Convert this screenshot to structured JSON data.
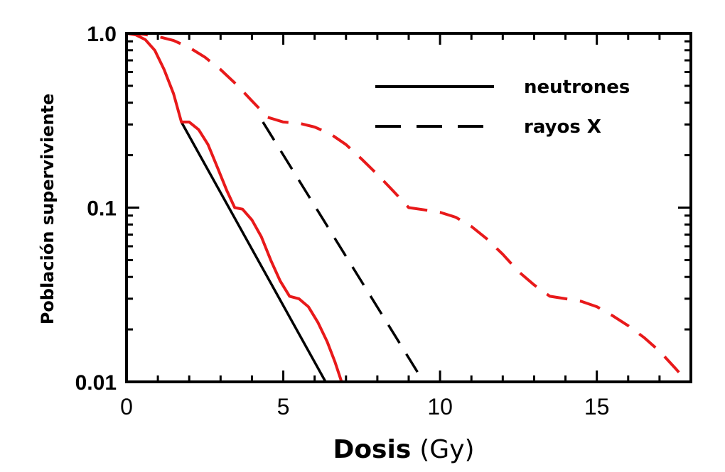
{
  "chart_data": {
    "type": "line",
    "xlabel_bold": "Dosis",
    "xlabel_unit": "(Gy)",
    "ylabel": "Población superviviente",
    "xlim": [
      0,
      18
    ],
    "ylim": [
      0.01,
      1.0
    ],
    "y_scale": "log",
    "x_ticks": [
      0,
      5,
      10,
      15
    ],
    "x_tick_labels": [
      "0",
      "5",
      "10",
      "15"
    ],
    "y_ticks": [
      0.01,
      0.1,
      1.0
    ],
    "y_tick_labels": [
      "0.01",
      "0.1",
      "1.0"
    ],
    "grid": false,
    "legend": {
      "position": "top-right",
      "entries": [
        {
          "label": "neutrones",
          "style": "solid",
          "color": "#000000"
        },
        {
          "label": "rayos X",
          "style": "dashed",
          "color": "#000000"
        }
      ]
    },
    "series": [
      {
        "style": "solid",
        "color": "#000000",
        "x": [
          1.75,
          6.35
        ],
        "y": [
          0.31,
          0.01
        ]
      },
      {
        "style": "dashed",
        "color": "#000000",
        "x": [
          4.35,
          9.55
        ],
        "y": [
          0.31,
          0.0095
        ]
      },
      {
        "style": "solid",
        "color": "#e8191a",
        "x": [
          0,
          0.3,
          0.6,
          0.9,
          1.2,
          1.5,
          1.75,
          2.0,
          2.3,
          2.6,
          2.9,
          3.2,
          3.45,
          3.7,
          4.0,
          4.3,
          4.6,
          4.9,
          5.2,
          5.5,
          5.8,
          6.1,
          6.4,
          6.65,
          6.9
        ],
        "y": [
          1.0,
          0.98,
          0.92,
          0.8,
          0.62,
          0.45,
          0.31,
          0.31,
          0.28,
          0.23,
          0.17,
          0.125,
          0.1,
          0.098,
          0.085,
          0.068,
          0.05,
          0.038,
          0.031,
          0.03,
          0.027,
          0.022,
          0.017,
          0.013,
          0.0095
        ]
      },
      {
        "style": "dashed",
        "color": "#e8191a",
        "x": [
          0,
          0.5,
          1.0,
          1.5,
          2.0,
          2.5,
          3.0,
          3.5,
          4.0,
          4.5,
          5.0,
          5.5,
          6.0,
          6.5,
          7.0,
          7.5,
          8.0,
          8.5,
          9.0,
          9.5,
          10.0,
          10.5,
          11.0,
          11.5,
          12.0,
          12.5,
          13.0,
          13.5,
          14.0,
          14.5,
          15.0,
          15.5,
          16.0,
          16.5,
          17.0,
          17.5,
          18.0
        ],
        "y": [
          1.0,
          0.99,
          0.96,
          0.91,
          0.83,
          0.73,
          0.62,
          0.51,
          0.41,
          0.33,
          0.31,
          0.305,
          0.29,
          0.265,
          0.23,
          0.19,
          0.155,
          0.125,
          0.1,
          0.097,
          0.094,
          0.088,
          0.078,
          0.066,
          0.054,
          0.043,
          0.036,
          0.031,
          0.03,
          0.029,
          0.027,
          0.024,
          0.021,
          0.018,
          0.015,
          0.012,
          0.0095
        ]
      }
    ]
  }
}
